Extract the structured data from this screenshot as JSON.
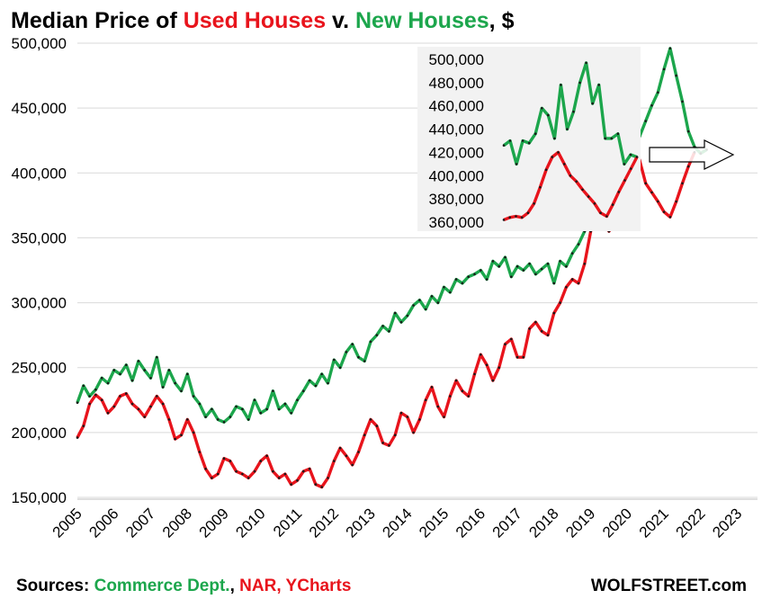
{
  "chart_data": {
    "type": "line",
    "title_parts": [
      {
        "text": "Median Price of ",
        "color": "#000000"
      },
      {
        "text": "Used Houses",
        "color": "#e8141c"
      },
      {
        "text": " v. ",
        "color": "#000000"
      },
      {
        "text": "New Houses",
        "color": "#1ca64c"
      },
      {
        "text": ", $",
        "color": "#000000"
      }
    ],
    "x_ticks": [
      "2005",
      "2006",
      "2007",
      "2008",
      "2009",
      "2010",
      "2011",
      "2012",
      "2013",
      "2014",
      "2015",
      "2016",
      "2017",
      "2018",
      "2019",
      "2020",
      "2021",
      "2022",
      "2023"
    ],
    "y_ticks": [
      "150,000",
      "200,000",
      "250,000",
      "300,000",
      "350,000",
      "400,000",
      "450,000",
      "500,000"
    ],
    "ylim": [
      150000,
      500000
    ],
    "xlim": [
      2005.0,
      2023.55
    ],
    "grid": "horizontal",
    "colors": {
      "new": "#1ca64c",
      "used": "#e8141c",
      "marker": "#1a1a1a",
      "inset_bg": "#f2f2f2"
    },
    "series": [
      {
        "key": "new",
        "x_start": 2005.0,
        "step_months": 2,
        "values": [
          223000,
          236000,
          228000,
          233000,
          242000,
          238000,
          248000,
          245000,
          252000,
          240000,
          255000,
          248000,
          242000,
          258000,
          235000,
          248000,
          238000,
          232000,
          245000,
          228000,
          222000,
          212000,
          218000,
          210000,
          208000,
          212000,
          220000,
          218000,
          210000,
          225000,
          215000,
          218000,
          232000,
          218000,
          222000,
          215000,
          225000,
          232000,
          240000,
          236000,
          245000,
          238000,
          256000,
          250000,
          262000,
          268000,
          258000,
          255000,
          270000,
          275000,
          282000,
          278000,
          292000,
          285000,
          290000,
          298000,
          302000,
          295000,
          305000,
          300000,
          312000,
          308000,
          318000,
          315000,
          320000,
          322000,
          325000,
          318000,
          332000,
          328000,
          335000,
          320000,
          328000,
          325000,
          330000,
          322000,
          326000,
          330000,
          315000,
          332000,
          328000,
          338000,
          345000,
          355000,
          365000,
          368000,
          392000,
          400000,
          410000,
          418000,
          425000,
          432000,
          428000,
          440000,
          452000,
          462000,
          480000,
          496000,
          475000,
          455000,
          432000,
          420000,
          415000,
          418000
        ]
      },
      {
        "key": "used",
        "x_start": 2005.0,
        "step_months": 2,
        "values": [
          196000,
          205000,
          222000,
          229000,
          225000,
          215000,
          220000,
          228000,
          230000,
          222000,
          218000,
          212000,
          220000,
          228000,
          222000,
          210000,
          195000,
          198000,
          210000,
          200000,
          185000,
          172000,
          165000,
          168000,
          180000,
          178000,
          170000,
          168000,
          165000,
          170000,
          178000,
          182000,
          170000,
          165000,
          168000,
          160000,
          163000,
          170000,
          172000,
          160000,
          158000,
          165000,
          178000,
          188000,
          182000,
          175000,
          185000,
          198000,
          210000,
          205000,
          192000,
          190000,
          198000,
          215000,
          212000,
          200000,
          210000,
          225000,
          235000,
          220000,
          212000,
          228000,
          240000,
          232000,
          228000,
          245000,
          260000,
          252000,
          240000,
          250000,
          268000,
          272000,
          258000,
          258000,
          280000,
          285000,
          278000,
          275000,
          292000,
          300000,
          312000,
          318000,
          315000,
          330000,
          355000,
          370000,
          365000,
          355000,
          362000,
          378000,
          405000,
          420000,
          410000,
          392000,
          385000,
          378000,
          370000,
          366000,
          378000,
          392000,
          405000,
          416000
        ]
      }
    ],
    "inset": {
      "y_ticks": [
        "500,000",
        "480,000",
        "460,000",
        "440,000",
        "420,000",
        "400,000",
        "380,000",
        "360,000"
      ],
      "ylim": [
        355000,
        505000
      ],
      "new_values": [
        426000,
        430000,
        410000,
        430000,
        428000,
        436000,
        458000,
        452000,
        432000,
        478000,
        440000,
        455000,
        480000,
        497000,
        462000,
        478000,
        432000,
        432000,
        436000,
        410000,
        418000,
        416000
      ],
      "used_values": [
        362000,
        364000,
        365000,
        364000,
        368000,
        376000,
        390000,
        405000,
        416000,
        420000,
        410000,
        400000,
        395000,
        388000,
        382000,
        376000,
        368000,
        365000,
        375000,
        386000,
        396000,
        406000,
        416000
      ]
    },
    "annotation": "arrow from recent data to inset"
  },
  "footer": {
    "sources_label": "Sources: ",
    "source_commerce": "Commerce Dept.",
    "sep1": ", ",
    "source_nar": "NAR",
    "sep2": ", ",
    "source_ycharts": "YCharts",
    "brand": "WOLFSTREET.com"
  }
}
